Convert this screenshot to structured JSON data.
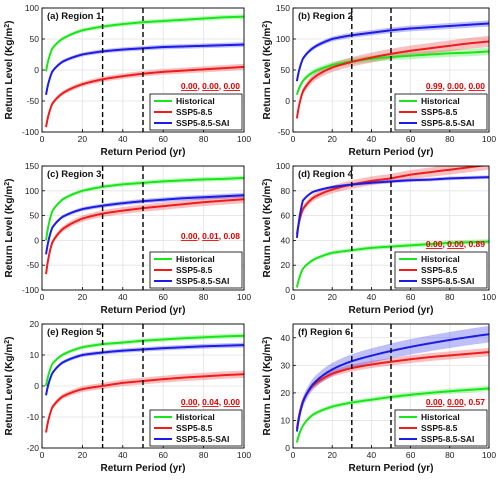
{
  "colors": {
    "Historical": "#19e619",
    "SSP5-8.5": "#ee1c1c",
    "SSP5-8.5-SAI": "#1c1ce6"
  },
  "legend_labels": [
    "Historical",
    "SSP5-8.5",
    "SSP5-8.5-SAI"
  ],
  "xlabel": "Return Period (yr)",
  "ylabel_main": "Return Level (Kg/m",
  "ylabel_sup": "2",
  "ylabel_end": ")",
  "chart_data": [
    {
      "type": "line",
      "title": "(a) Region 1",
      "xlim": [
        0,
        100
      ],
      "ylim": [
        -100,
        100
      ],
      "xticks": [
        0,
        20,
        40,
        60,
        80,
        100
      ],
      "yticks": [
        -100,
        -50,
        0,
        50,
        100
      ],
      "vlines": [
        30,
        50
      ],
      "legend_position": "bottom-right",
      "pvalues": [
        "0.00",
        "0.00",
        "0.00"
      ],
      "pvalue_seps": [
        ", ",
        ", "
      ],
      "pvalue_position": "bottom-right",
      "x": [
        2,
        5,
        10,
        20,
        30,
        40,
        50,
        60,
        70,
        80,
        90,
        100
      ],
      "series": [
        {
          "name": "Historical",
          "values": [
            -2,
            34,
            50,
            64,
            70,
            74,
            77,
            79,
            81,
            83,
            85,
            86
          ],
          "band": 4
        },
        {
          "name": "SSP5-8.5",
          "values": [
            -92,
            -55,
            -38,
            -23,
            -15,
            -10,
            -6,
            -3,
            -1,
            1,
            3,
            5
          ],
          "band": 5
        },
        {
          "name": "SSP5-8.5-SAI",
          "values": [
            -40,
            -3,
            13,
            25,
            30,
            33,
            35,
            37,
            38,
            39,
            40,
            41
          ],
          "band": 4
        }
      ]
    },
    {
      "type": "line",
      "title": "(b) Region 2",
      "xlim": [
        0,
        100
      ],
      "ylim": [
        -50,
        150
      ],
      "xticks": [
        0,
        20,
        40,
        60,
        80,
        100
      ],
      "yticks": [
        -50,
        0,
        50,
        100,
        150
      ],
      "vlines": [
        30,
        50
      ],
      "legend_position": "bottom-right",
      "pvalues": [
        "0.99",
        "0.00",
        "0.00"
      ],
      "pvalue_seps": [
        ", ",
        ", "
      ],
      "pvalue_position": "bottom-right",
      "x": [
        2,
        5,
        10,
        20,
        30,
        40,
        50,
        60,
        70,
        80,
        90,
        100
      ],
      "series": [
        {
          "name": "Historical",
          "values": [
            10,
            32,
            46,
            58,
            64,
            68,
            71,
            73,
            75,
            77,
            78,
            80
          ],
          "band": 6
        },
        {
          "name": "SSP5-8.5",
          "values": [
            -28,
            15,
            36,
            54,
            63,
            70,
            76,
            81,
            85,
            89,
            93,
            96
          ],
          "band": 9
        },
        {
          "name": "SSP5-8.5-SAI",
          "values": [
            32,
            68,
            85,
            100,
            106,
            110,
            114,
            117,
            119,
            121,
            123,
            125
          ],
          "band": 5
        }
      ]
    },
    {
      "type": "line",
      "title": "(c) Region 3",
      "xlim": [
        0,
        100
      ],
      "ylim": [
        -100,
        150
      ],
      "xticks": [
        0,
        20,
        40,
        60,
        80,
        100
      ],
      "yticks": [
        -100,
        -50,
        0,
        50,
        100,
        150
      ],
      "vlines": [
        30,
        50
      ],
      "legend_position": "bottom-right",
      "pvalues": [
        "0.00",
        "0.01",
        "0.08"
      ],
      "pvalue_seps": [
        ", ",
        ", "
      ],
      "pvalue_position": "right",
      "x": [
        2,
        5,
        10,
        20,
        30,
        40,
        50,
        60,
        70,
        80,
        90,
        100
      ],
      "series": [
        {
          "name": "Historical",
          "values": [
            0,
            58,
            82,
            100,
            108,
            113,
            116,
            119,
            121,
            123,
            124,
            126
          ],
          "band": 5
        },
        {
          "name": "SSP5-8.5",
          "values": [
            -68,
            -5,
            22,
            44,
            54,
            60,
            65,
            69,
            73,
            77,
            80,
            83
          ],
          "band": 8
        },
        {
          "name": "SSP5-8.5-SAI",
          "values": [
            -28,
            25,
            47,
            63,
            70,
            75,
            79,
            82,
            85,
            87,
            89,
            91
          ],
          "band": 5
        }
      ]
    },
    {
      "type": "line",
      "title": "(d) Region 4",
      "xlim": [
        0,
        100
      ],
      "ylim": [
        0,
        100
      ],
      "xticks": [
        0,
        20,
        40,
        60,
        80,
        100
      ],
      "yticks": [
        0,
        20,
        40,
        60,
        80,
        100
      ],
      "vlines": [
        30,
        50
      ],
      "legend_position": "bottom-right",
      "pvalues": [
        "0.00",
        "0.00",
        "0.89"
      ],
      "pvalue_seps": [
        ", ",
        ", "
      ],
      "pvalue_position": "bottom-right",
      "x": [
        2,
        5,
        10,
        20,
        30,
        40,
        50,
        60,
        70,
        80,
        90,
        100
      ],
      "series": [
        {
          "name": "Historical",
          "values": [
            2,
            17,
            24,
            30,
            32,
            34,
            35,
            36,
            37,
            38,
            38.5,
            39
          ],
          "band": 2
        },
        {
          "name": "SSP5-8.5",
          "values": [
            45,
            65,
            74,
            81,
            85,
            88,
            90,
            93,
            95,
            97,
            99,
            101
          ],
          "band": 4
        },
        {
          "name": "SSP5-8.5-SAI",
          "values": [
            42,
            72,
            79,
            83,
            85,
            86.5,
            87.5,
            88.5,
            89,
            90,
            90.5,
            91
          ],
          "band": 1.5
        }
      ]
    },
    {
      "type": "line",
      "title": "(e) Region 5",
      "xlim": [
        0,
        100
      ],
      "ylim": [
        -20,
        20
      ],
      "xticks": [
        0,
        20,
        40,
        60,
        80,
        100
      ],
      "yticks": [
        -20,
        -10,
        0,
        10,
        20
      ],
      "vlines": [
        30,
        50
      ],
      "legend_position": "bottom-right",
      "pvalues": [
        "0.00",
        "0.04",
        "0.00"
      ],
      "pvalue_seps": [
        ", ",
        ", "
      ],
      "pvalue_position": "bottom-right",
      "x": [
        2,
        5,
        10,
        20,
        30,
        40,
        50,
        60,
        70,
        80,
        90,
        100
      ],
      "series": [
        {
          "name": "Historical",
          "values": [
            0,
            7,
            10,
            12.5,
            13.5,
            14,
            14.6,
            15,
            15.4,
            15.7,
            16,
            16.2
          ],
          "band": 0.8
        },
        {
          "name": "SSP5-8.5",
          "values": [
            -15,
            -7,
            -3.5,
            -1,
            0,
            1,
            1.6,
            2.2,
            2.7,
            3.1,
            3.5,
            3.8
          ],
          "band": 1.2
        },
        {
          "name": "SSP5-8.5-SAI",
          "values": [
            -3,
            4,
            7.5,
            10,
            10.8,
            11.4,
            11.8,
            12.2,
            12.5,
            12.8,
            13,
            13.2
          ],
          "band": 0.8
        }
      ]
    },
    {
      "type": "line",
      "title": "(f) Region 6",
      "xlim": [
        0,
        100
      ],
      "ylim": [
        0,
        45
      ],
      "xticks": [
        0,
        20,
        40,
        60,
        80,
        100
      ],
      "yticks": [
        0,
        10,
        20,
        30,
        40
      ],
      "vlines": [
        30,
        50
      ],
      "legend_position": "bottom-right",
      "pvalues": [
        "0.00",
        "0.00",
        "0.57"
      ],
      "pvalue_seps": [
        ", ",
        ", "
      ],
      "pvalue_position": "bottom-right",
      "x": [
        2,
        5,
        10,
        20,
        30,
        40,
        50,
        60,
        70,
        80,
        90,
        100
      ],
      "series": [
        {
          "name": "Historical",
          "values": [
            2,
            8,
            12,
            15,
            16.5,
            17.5,
            18.5,
            19.3,
            20,
            20.6,
            21.1,
            21.6
          ],
          "band": 1
        },
        {
          "name": "SSP5-8.5",
          "values": [
            7,
            17,
            22.5,
            27,
            29,
            30.3,
            31.3,
            32.2,
            33,
            33.6,
            34.2,
            34.8
          ],
          "band": 1.5
        },
        {
          "name": "SSP5-8.5-SAI",
          "values": [
            6,
            16.5,
            23,
            28.5,
            31.5,
            33.5,
            35.2,
            36.7,
            38,
            39.2,
            40.3,
            41.3
          ],
          "band": 3
        }
      ]
    }
  ]
}
